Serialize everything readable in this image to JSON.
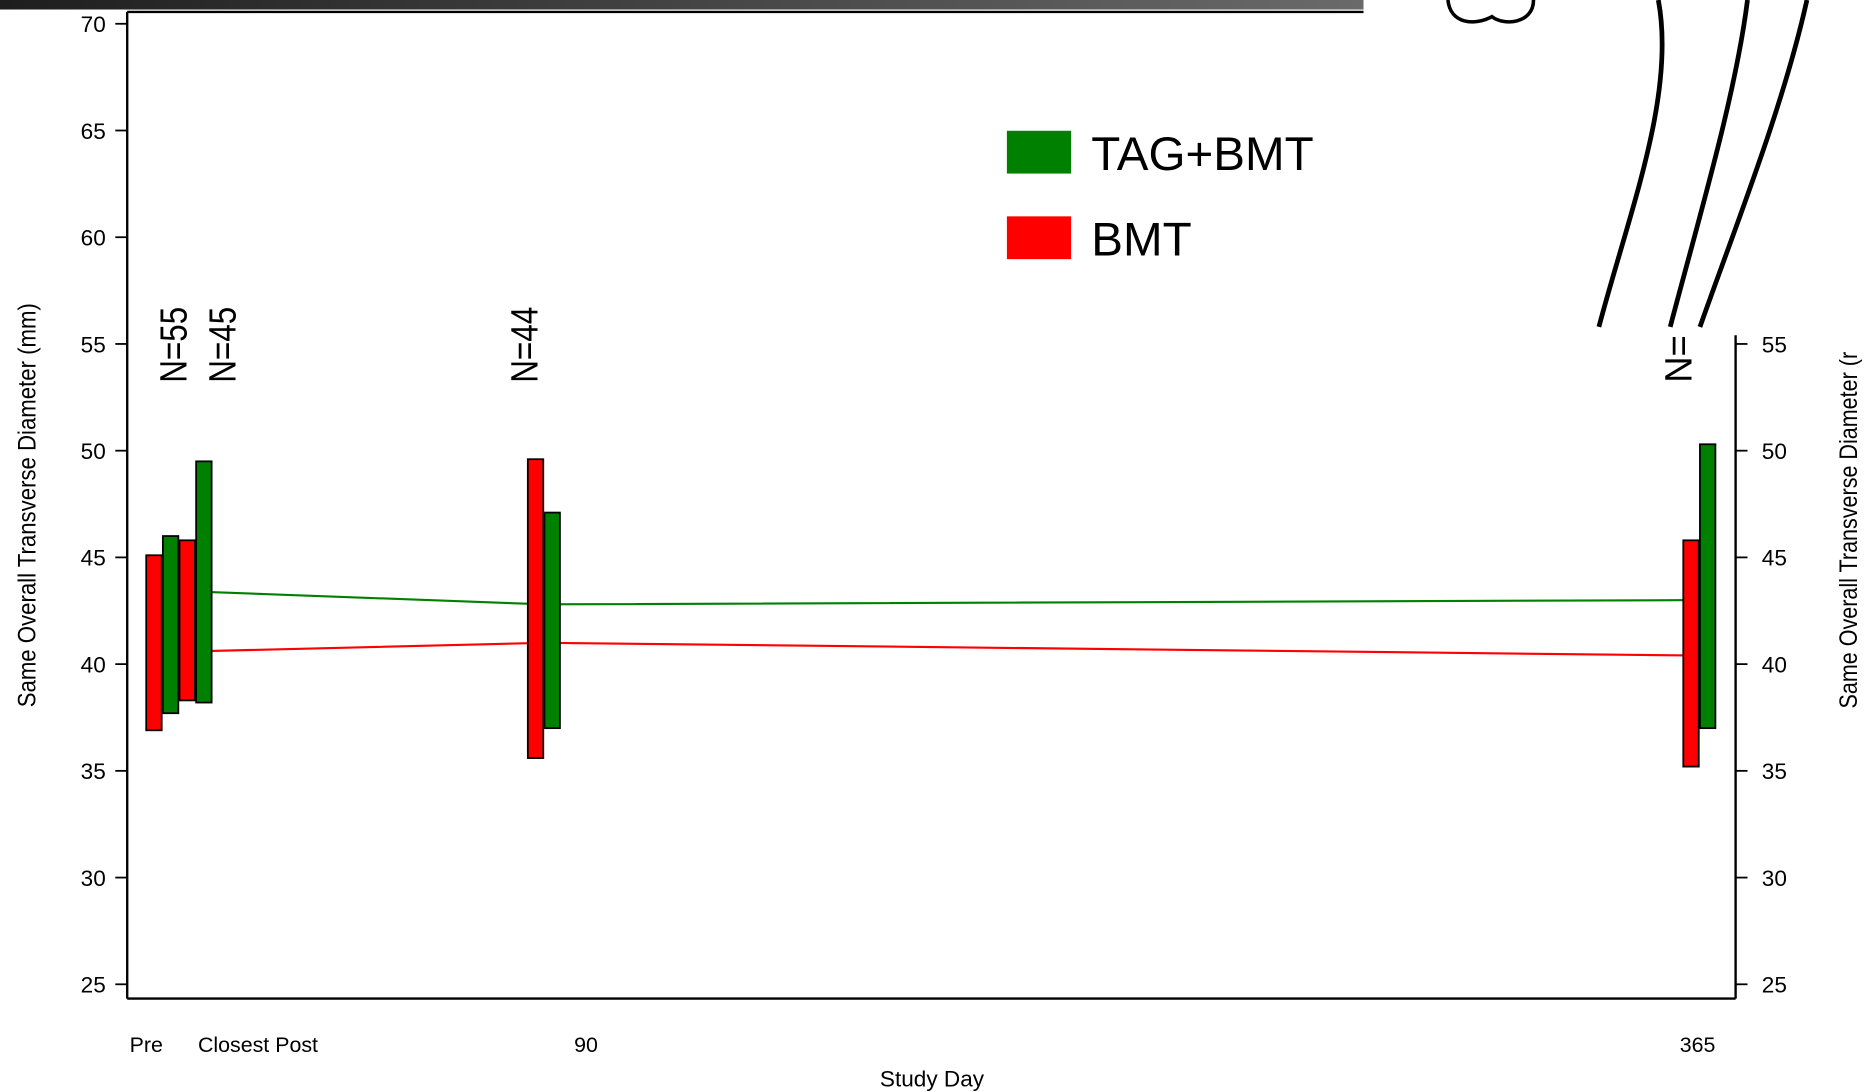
{
  "chart_data": {
    "type": "range-bar",
    "x_label": "Study Day",
    "y_label": "Same Overall Transverse Diameter (mm)",
    "y2_label": "Same Overall Transverse Diameter (r",
    "categories": [
      "Pre",
      "Closest Post",
      "90",
      "365"
    ],
    "annotations": [
      "N=55",
      "N=45",
      "N=44",
      "N="
    ],
    "series": [
      {
        "name": "TAG+BMT",
        "color": "#008000",
        "low": [
          37.7,
          38.2,
          37.0,
          37.0
        ],
        "high": [
          46.0,
          49.5,
          47.1,
          50.3
        ],
        "mean": [
          null,
          43.4,
          42.8,
          43.0
        ]
      },
      {
        "name": "BMT",
        "color": "#ff0000",
        "low": [
          36.9,
          38.3,
          35.6,
          35.2
        ],
        "high": [
          45.1,
          45.8,
          49.6,
          45.8
        ],
        "mean": [
          40.6,
          40.6,
          41.0,
          40.4
        ]
      }
    ],
    "ylim": [
      25,
      70
    ],
    "yticks": [
      25,
      30,
      35,
      40,
      45,
      50,
      55,
      60,
      65,
      70
    ],
    "y2lim": [
      25,
      70
    ],
    "y2ticks": [
      25,
      30,
      35,
      40,
      45,
      50,
      55
    ]
  }
}
